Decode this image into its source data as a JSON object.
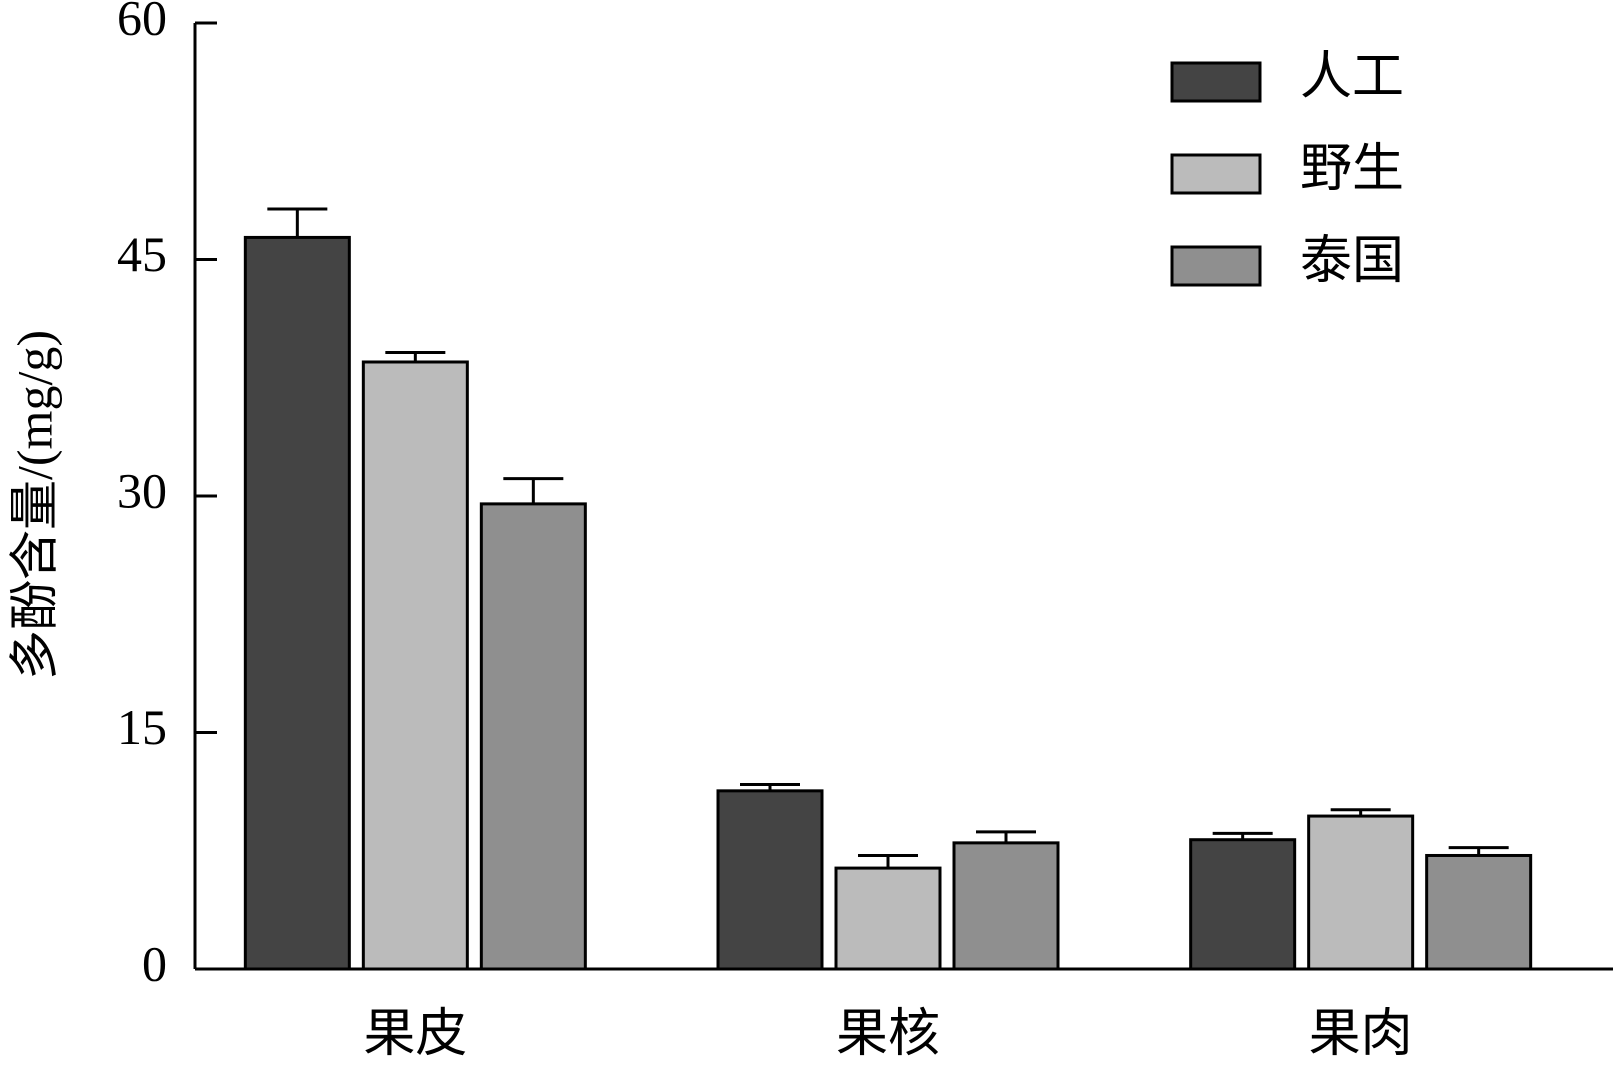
{
  "chart_data": {
    "type": "bar",
    "y_label": "多酚含量/(mg/g)",
    "categories": [
      "果皮",
      "果核",
      "果肉"
    ],
    "series": [
      {
        "name": "人工",
        "color": "#444444",
        "values": [
          46.4,
          11.3,
          8.2
        ],
        "errors": [
          1.8,
          0.4,
          0.4
        ]
      },
      {
        "name": "野生",
        "color": "#bbbbbb",
        "values": [
          38.5,
          6.4,
          9.7
        ],
        "errors": [
          0.6,
          0.8,
          0.4
        ]
      },
      {
        "name": "泰国",
        "color": "#8f8f8f",
        "values": [
          29.5,
          8.0,
          7.2
        ],
        "errors": [
          1.6,
          0.7,
          0.5
        ]
      }
    ],
    "ylim": [
      0,
      60
    ],
    "yticks": [
      0,
      15,
      30,
      45,
      60
    ],
    "legend": "upper right"
  }
}
